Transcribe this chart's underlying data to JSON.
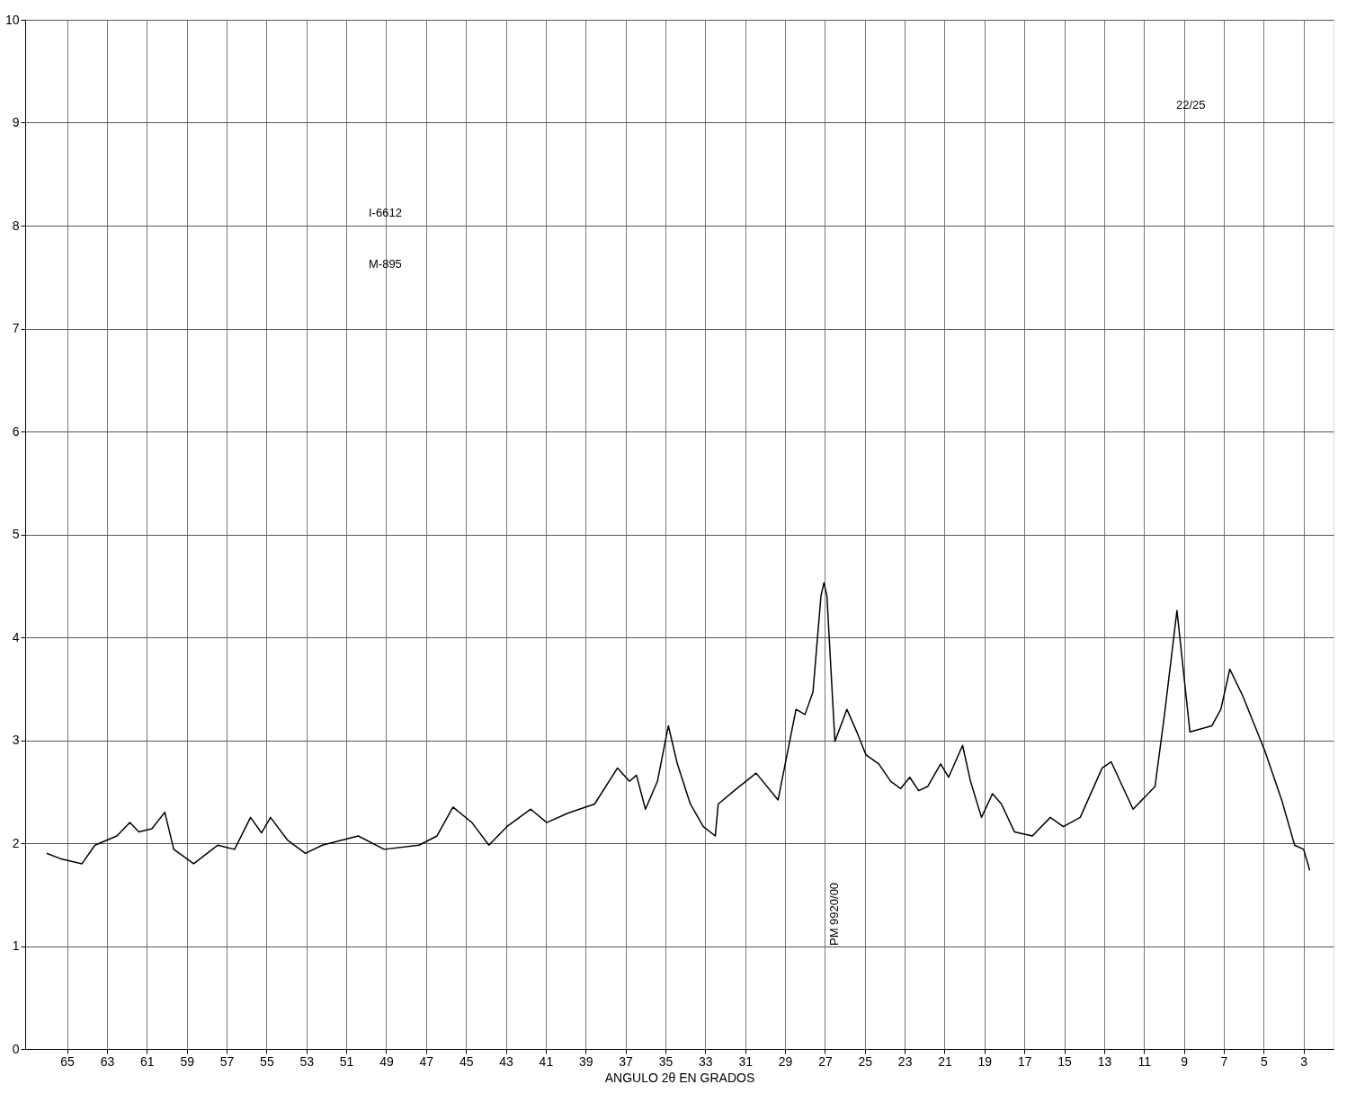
{
  "chart_data": {
    "type": "line",
    "xlabel": "ANGULO 2θ EN GRADOS",
    "annotations": [
      "I-6612",
      "M-895",
      "22/25",
      "PM 9920/00"
    ],
    "x": [
      66.0,
      65.35,
      64.25,
      63.6,
      62.5,
      61.85,
      61.4,
      60.75,
      60.1,
      59.65,
      58.65,
      57.45,
      56.6,
      55.8,
      55.25,
      54.8,
      53.95,
      53.05,
      52.2,
      50.4,
      49.1,
      47.35,
      46.45,
      45.65,
      44.7,
      43.85,
      42.95,
      41.75,
      40.95,
      39.9,
      38.55,
      37.4,
      36.8,
      36.45,
      36.0,
      35.4,
      34.85,
      34.4,
      33.75,
      33.1,
      32.5,
      32.35,
      31.55,
      30.45,
      29.35,
      28.45,
      28.0,
      27.6,
      27.2,
      27.05,
      26.9,
      26.7,
      26.5,
      25.9,
      25.4,
      24.95,
      24.3,
      23.7,
      23.2,
      22.75,
      22.3,
      21.85,
      21.2,
      20.8,
      20.1,
      19.7,
      19.15,
      18.6,
      18.15,
      17.5,
      16.6,
      15.7,
      15.05,
      14.2,
      13.1,
      12.65,
      12.2,
      11.55,
      10.45,
      10.0,
      9.35,
      8.7,
      7.6,
      7.15,
      6.7,
      6.05,
      4.95,
      4.1,
      3.45,
      3.0,
      2.7
    ],
    "series": [
      {
        "color": "#000000",
        "values": [
          1.9,
          1.85,
          1.8,
          1.98,
          2.07,
          2.2,
          2.11,
          2.14,
          2.3,
          1.94,
          1.8,
          1.98,
          1.94,
          2.25,
          2.1,
          2.25,
          2.03,
          1.9,
          1.98,
          2.07,
          1.94,
          1.98,
          2.07,
          2.35,
          2.2,
          1.98,
          2.16,
          2.33,
          2.2,
          2.29,
          2.38,
          2.73,
          2.6,
          2.66,
          2.33,
          2.6,
          3.14,
          2.77,
          2.38,
          2.16,
          2.07,
          2.38,
          2.51,
          2.68,
          2.42,
          3.3,
          3.25,
          3.47,
          4.4,
          4.53,
          4.4,
          3.69,
          2.99,
          3.3,
          3.08,
          2.86,
          2.77,
          2.6,
          2.53,
          2.64,
          2.51,
          2.55,
          2.77,
          2.64,
          2.95,
          2.6,
          2.25,
          2.48,
          2.38,
          2.11,
          2.07,
          2.25,
          2.16,
          2.25,
          2.73,
          2.79,
          2.6,
          2.33,
          2.55,
          3.21,
          4.26,
          3.08,
          3.14,
          3.3,
          3.69,
          3.43,
          2.9,
          2.42,
          1.98,
          1.94,
          1.74
        ]
      }
    ],
    "xlim": [
      67.1,
      1.5
    ],
    "xticks": [
      65,
      63,
      61,
      59,
      57,
      55,
      53,
      51,
      49,
      47,
      45,
      43,
      41,
      39,
      37,
      35,
      33,
      31,
      29,
      27,
      25,
      23,
      21,
      19,
      17,
      15,
      13,
      11,
      9,
      7,
      5,
      3
    ],
    "ylim": [
      0,
      10
    ],
    "yticks": [
      0,
      1,
      2,
      3,
      4,
      5,
      6,
      7,
      8,
      9,
      10
    ],
    "grid": true,
    "marker": "none",
    "line_style": "solid"
  }
}
